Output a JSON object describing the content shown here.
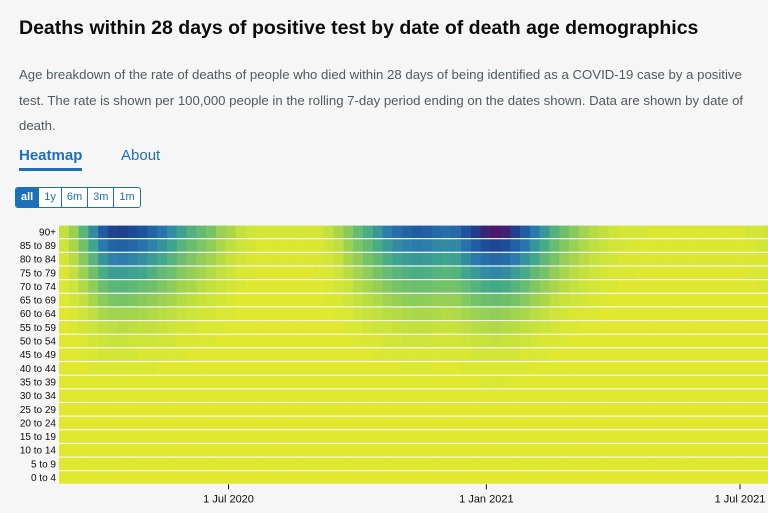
{
  "header": {
    "title": "Deaths within 28 days of positive test by date of death age demographics",
    "description": "Age breakdown of the rate of deaths of people who died within 28 days of being identified as a COVID-19 case by a positive test. The rate is shown per 100,000 people in the rolling 7-day period ending on the dates shown. Data are shown by date of death."
  },
  "tabs": [
    {
      "label": "Heatmap",
      "active": true
    },
    {
      "label": "About",
      "active": false
    }
  ],
  "time_ranges": [
    {
      "label": "all",
      "active": true
    },
    {
      "label": "1y",
      "active": false
    },
    {
      "label": "6m",
      "active": false
    },
    {
      "label": "3m",
      "active": false
    },
    {
      "label": "1m",
      "active": false
    }
  ],
  "chart_data": {
    "type": "heatmap",
    "age_groups": [
      "90+",
      "85 to 89",
      "80 to 84",
      "75 to 79",
      "70 to 74",
      "65 to 69",
      "60 to 64",
      "55 to 59",
      "50 to 54",
      "45 to 49",
      "40 to 44",
      "35 to 39",
      "30 to 34",
      "25 to 29",
      "20 to 24",
      "15 to 19",
      "10 to 14",
      "5 to 9",
      "0 to 4"
    ],
    "x_ticks": [
      {
        "label": "1 Jul 2020",
        "date": "2020-07-01"
      },
      {
        "label": "1 Jan 2021",
        "date": "2021-01-01"
      },
      {
        "label": "1 Jul 2021",
        "date": "2021-07-01"
      }
    ],
    "x_range": [
      "2020-03-02",
      "2021-07-21"
    ],
    "weeks": [
      "2020-03-02",
      "2020-03-09",
      "2020-03-16",
      "2020-03-23",
      "2020-03-30",
      "2020-04-06",
      "2020-04-13",
      "2020-04-20",
      "2020-04-27",
      "2020-05-04",
      "2020-05-11",
      "2020-05-18",
      "2020-05-25",
      "2020-06-01",
      "2020-06-08",
      "2020-06-15",
      "2020-06-22",
      "2020-06-29",
      "2020-07-06",
      "2020-07-13",
      "2020-07-20",
      "2020-07-27",
      "2020-08-03",
      "2020-08-10",
      "2020-08-17",
      "2020-08-24",
      "2020-08-31",
      "2020-09-07",
      "2020-09-14",
      "2020-09-21",
      "2020-09-28",
      "2020-10-05",
      "2020-10-12",
      "2020-10-19",
      "2020-10-26",
      "2020-11-02",
      "2020-11-09",
      "2020-11-16",
      "2020-11-23",
      "2020-11-30",
      "2020-12-07",
      "2020-12-14",
      "2020-12-21",
      "2020-12-28",
      "2021-01-04",
      "2021-01-11",
      "2021-01-18",
      "2021-01-25",
      "2021-02-01",
      "2021-02-08",
      "2021-02-15",
      "2021-02-22",
      "2021-03-01",
      "2021-03-08",
      "2021-03-15",
      "2021-03-22",
      "2021-03-29",
      "2021-04-05",
      "2021-04-12",
      "2021-04-19",
      "2021-04-26",
      "2021-05-03",
      "2021-05-10",
      "2021-05-17",
      "2021-05-24",
      "2021-05-31",
      "2021-06-07",
      "2021-06-14",
      "2021-06-21",
      "2021-06-28",
      "2021-07-05",
      "2021-07-12",
      "2021-07-19"
    ],
    "values": [
      [
        5,
        15,
        40,
        80,
        140,
        175,
        180,
        165,
        150,
        130,
        105,
        80,
        60,
        45,
        35,
        25,
        15,
        10,
        5,
        3,
        2,
        2,
        2,
        2,
        2,
        2,
        2,
        5,
        10,
        20,
        35,
        50,
        70,
        95,
        115,
        130,
        140,
        135,
        120,
        115,
        120,
        150,
        185,
        215,
        230,
        220,
        180,
        140,
        100,
        70,
        45,
        30,
        20,
        12,
        8,
        5,
        3,
        2,
        2,
        2,
        1,
        1,
        1,
        1,
        1,
        1,
        1,
        1,
        1,
        1,
        2,
        2,
        3
      ],
      [
        3,
        10,
        28,
        58,
        100,
        128,
        132,
        122,
        108,
        92,
        75,
        58,
        42,
        32,
        24,
        18,
        10,
        6,
        3,
        2,
        1,
        1,
        1,
        1,
        1,
        1,
        1,
        3,
        6,
        14,
        24,
        36,
        50,
        68,
        82,
        92,
        98,
        95,
        86,
        82,
        86,
        110,
        138,
        160,
        170,
        162,
        133,
        104,
        74,
        52,
        34,
        22,
        15,
        9,
        6,
        4,
        2,
        2,
        1,
        1,
        1,
        1,
        1,
        1,
        1,
        1,
        1,
        1,
        1,
        1,
        1,
        2,
        2
      ],
      [
        2,
        7,
        20,
        42,
        72,
        92,
        96,
        88,
        78,
        66,
        54,
        42,
        31,
        23,
        17,
        12,
        7,
        4,
        2,
        1,
        1,
        1,
        1,
        1,
        1,
        1,
        1,
        2,
        4,
        10,
        17,
        26,
        36,
        49,
        59,
        66,
        70,
        68,
        62,
        59,
        62,
        80,
        100,
        116,
        123,
        117,
        96,
        75,
        54,
        38,
        25,
        16,
        11,
        7,
        4,
        3,
        2,
        1,
        1,
        1,
        1,
        1,
        1,
        1,
        1,
        1,
        1,
        1,
        1,
        1,
        1,
        1,
        1
      ],
      [
        1,
        5,
        14,
        29,
        50,
        64,
        66,
        61,
        54,
        46,
        37,
        29,
        21,
        16,
        12,
        8,
        5,
        3,
        1,
        1,
        0,
        0,
        0,
        0,
        0,
        0,
        1,
        1,
        3,
        7,
        12,
        18,
        25,
        34,
        41,
        46,
        49,
        47,
        43,
        41,
        43,
        55,
        69,
        80,
        85,
        81,
        66,
        52,
        37,
        26,
        17,
        11,
        7,
        5,
        3,
        2,
        1,
        1,
        1,
        0,
        0,
        0,
        0,
        0,
        0,
        0,
        0,
        0,
        0,
        0,
        1,
        1,
        1
      ],
      [
        1,
        3,
        9,
        18,
        31,
        40,
        41,
        38,
        34,
        29,
        23,
        18,
        13,
        10,
        7,
        5,
        3,
        2,
        1,
        0,
        0,
        0,
        0,
        0,
        0,
        0,
        0,
        1,
        2,
        4,
        8,
        11,
        16,
        21,
        26,
        29,
        31,
        30,
        27,
        26,
        27,
        35,
        43,
        50,
        53,
        51,
        42,
        33,
        23,
        16,
        11,
        7,
        5,
        3,
        2,
        1,
        1,
        0,
        0,
        0,
        0,
        0,
        0,
        0,
        0,
        0,
        0,
        0,
        0,
        0,
        0,
        1,
        1
      ],
      [
        0,
        2,
        5,
        11,
        19,
        24,
        25,
        23,
        20,
        17,
        14,
        11,
        8,
        6,
        4,
        3,
        2,
        1,
        0,
        0,
        0,
        0,
        0,
        0,
        0,
        0,
        0,
        1,
        1,
        3,
        5,
        7,
        9,
        13,
        16,
        18,
        19,
        18,
        16,
        16,
        16,
        21,
        26,
        30,
        32,
        30,
        25,
        20,
        14,
        10,
        6,
        4,
        3,
        2,
        1,
        1,
        0,
        0,
        0,
        0,
        0,
        0,
        0,
        0,
        0,
        0,
        0,
        0,
        0,
        0,
        0,
        0,
        0
      ],
      [
        0,
        1,
        3,
        6,
        10,
        13,
        13,
        12,
        11,
        9,
        7,
        6,
        4,
        3,
        2,
        2,
        1,
        1,
        0,
        0,
        0,
        0,
        0,
        0,
        0,
        0,
        0,
        0,
        1,
        1,
        3,
        4,
        5,
        7,
        8,
        9,
        10,
        10,
        9,
        8,
        9,
        11,
        14,
        16,
        17,
        16,
        13,
        10,
        7,
        5,
        3,
        2,
        1,
        1,
        1,
        0,
        0,
        0,
        0,
        0,
        0,
        0,
        0,
        0,
        0,
        0,
        0,
        0,
        0,
        0,
        0,
        0,
        0
      ],
      [
        0,
        1,
        2,
        3,
        5,
        6,
        7,
        6,
        5,
        5,
        4,
        3,
        2,
        2,
        1,
        1,
        1,
        0,
        0,
        0,
        0,
        0,
        0,
        0,
        0,
        0,
        0,
        0,
        0,
        1,
        1,
        2,
        3,
        3,
        4,
        5,
        5,
        5,
        4,
        4,
        4,
        6,
        7,
        8,
        9,
        8,
        7,
        5,
        4,
        3,
        2,
        1,
        1,
        0,
        0,
        0,
        0,
        0,
        0,
        0,
        0,
        0,
        0,
        0,
        0,
        0,
        0,
        0,
        0,
        0,
        0,
        0,
        0
      ],
      [
        0,
        0,
        1,
        2,
        3,
        4,
        4,
        3,
        3,
        3,
        2,
        2,
        1,
        1,
        1,
        1,
        0,
        0,
        0,
        0,
        0,
        0,
        0,
        0,
        0,
        0,
        0,
        0,
        0,
        0,
        1,
        1,
        1,
        2,
        2,
        3,
        3,
        3,
        2,
        2,
        2,
        3,
        4,
        4,
        5,
        4,
        4,
        3,
        2,
        1,
        1,
        1,
        0,
        0,
        0,
        0,
        0,
        0,
        0,
        0,
        0,
        0,
        0,
        0,
        0,
        0,
        0,
        0,
        0,
        0,
        0,
        0,
        0
      ],
      [
        0,
        0,
        1,
        1,
        2,
        2,
        2,
        2,
        1,
        1,
        1,
        1,
        1,
        0,
        0,
        0,
        0,
        0,
        0,
        0,
        0,
        0,
        0,
        0,
        0,
        0,
        0,
        0,
        0,
        0,
        0,
        0,
        1,
        1,
        1,
        1,
        1,
        1,
        1,
        1,
        1,
        1,
        2,
        2,
        2,
        2,
        2,
        1,
        1,
        1,
        0,
        0,
        0,
        0,
        0,
        0,
        0,
        0,
        0,
        0,
        0,
        0,
        0,
        0,
        0,
        0,
        0,
        0,
        0,
        0,
        0,
        0,
        0
      ],
      [
        0,
        0,
        0,
        1,
        1,
        1,
        1,
        1,
        1,
        1,
        0,
        0,
        0,
        0,
        0,
        0,
        0,
        0,
        0,
        0,
        0,
        0,
        0,
        0,
        0,
        0,
        0,
        0,
        0,
        0,
        0,
        0,
        0,
        0,
        0,
        1,
        1,
        1,
        0,
        0,
        0,
        1,
        1,
        1,
        1,
        1,
        1,
        1,
        0,
        0,
        0,
        0,
        0,
        0,
        0,
        0,
        0,
        0,
        0,
        0,
        0,
        0,
        0,
        0,
        0,
        0,
        0,
        0,
        0,
        0,
        0,
        0,
        0
      ],
      [
        0,
        0,
        0,
        0,
        0,
        0,
        0,
        0,
        0,
        0,
        0,
        0,
        0,
        0,
        0,
        0,
        0,
        0,
        0,
        0,
        0,
        0,
        0,
        0,
        0,
        0,
        0,
        0,
        0,
        0,
        0,
        0,
        0,
        0,
        0,
        0,
        0,
        0,
        0,
        0,
        0,
        0,
        0,
        1,
        1,
        1,
        0,
        0,
        0,
        0,
        0,
        0,
        0,
        0,
        0,
        0,
        0,
        0,
        0,
        0,
        0,
        0,
        0,
        0,
        0,
        0,
        0,
        0,
        0,
        0,
        0,
        0,
        0
      ],
      [
        0,
        0,
        0,
        0,
        0,
        0,
        0,
        0,
        0,
        0,
        0,
        0,
        0,
        0,
        0,
        0,
        0,
        0,
        0,
        0,
        0,
        0,
        0,
        0,
        0,
        0,
        0,
        0,
        0,
        0,
        0,
        0,
        0,
        0,
        0,
        0,
        0,
        0,
        0,
        0,
        0,
        0,
        0,
        0,
        0,
        0,
        0,
        0,
        0,
        0,
        0,
        0,
        0,
        0,
        0,
        0,
        0,
        0,
        0,
        0,
        0,
        0,
        0,
        0,
        0,
        0,
        0,
        0,
        0,
        0,
        0,
        0,
        0
      ],
      [
        0,
        0,
        0,
        0,
        0,
        0,
        0,
        0,
        0,
        0,
        0,
        0,
        0,
        0,
        0,
        0,
        0,
        0,
        0,
        0,
        0,
        0,
        0,
        0,
        0,
        0,
        0,
        0,
        0,
        0,
        0,
        0,
        0,
        0,
        0,
        0,
        0,
        0,
        0,
        0,
        0,
        0,
        0,
        0,
        0,
        0,
        0,
        0,
        0,
        0,
        0,
        0,
        0,
        0,
        0,
        0,
        0,
        0,
        0,
        0,
        0,
        0,
        0,
        0,
        0,
        0,
        0,
        0,
        0,
        0,
        0,
        0,
        0
      ],
      [
        0,
        0,
        0,
        0,
        0,
        0,
        0,
        0,
        0,
        0,
        0,
        0,
        0,
        0,
        0,
        0,
        0,
        0,
        0,
        0,
        0,
        0,
        0,
        0,
        0,
        0,
        0,
        0,
        0,
        0,
        0,
        0,
        0,
        0,
        0,
        0,
        0,
        0,
        0,
        0,
        0,
        0,
        0,
        0,
        0,
        0,
        0,
        0,
        0,
        0,
        0,
        0,
        0,
        0,
        0,
        0,
        0,
        0,
        0,
        0,
        0,
        0,
        0,
        0,
        0,
        0,
        0,
        0,
        0,
        0,
        0,
        0,
        0
      ],
      [
        0,
        0,
        0,
        0,
        0,
        0,
        0,
        0,
        0,
        0,
        0,
        0,
        0,
        0,
        0,
        0,
        0,
        0,
        0,
        0,
        0,
        0,
        0,
        0,
        0,
        0,
        0,
        0,
        0,
        0,
        0,
        0,
        0,
        0,
        0,
        0,
        0,
        0,
        0,
        0,
        0,
        0,
        0,
        0,
        0,
        0,
        0,
        0,
        0,
        0,
        0,
        0,
        0,
        0,
        0,
        0,
        0,
        0,
        0,
        0,
        0,
        0,
        0,
        0,
        0,
        0,
        0,
        0,
        0,
        0,
        0,
        0,
        0
      ],
      [
        0,
        0,
        0,
        0,
        0,
        0,
        0,
        0,
        0,
        0,
        0,
        0,
        0,
        0,
        0,
        0,
        0,
        0,
        0,
        0,
        0,
        0,
        0,
        0,
        0,
        0,
        0,
        0,
        0,
        0,
        0,
        0,
        0,
        0,
        0,
        0,
        0,
        0,
        0,
        0,
        0,
        0,
        0,
        0,
        0,
        0,
        0,
        0,
        0,
        0,
        0,
        0,
        0,
        0,
        0,
        0,
        0,
        0,
        0,
        0,
        0,
        0,
        0,
        0,
        0,
        0,
        0,
        0,
        0,
        0,
        0,
        0,
        0
      ],
      [
        0,
        0,
        0,
        0,
        0,
        0,
        0,
        0,
        0,
        0,
        0,
        0,
        0,
        0,
        0,
        0,
        0,
        0,
        0,
        0,
        0,
        0,
        0,
        0,
        0,
        0,
        0,
        0,
        0,
        0,
        0,
        0,
        0,
        0,
        0,
        0,
        0,
        0,
        0,
        0,
        0,
        0,
        0,
        0,
        0,
        0,
        0,
        0,
        0,
        0,
        0,
        0,
        0,
        0,
        0,
        0,
        0,
        0,
        0,
        0,
        0,
        0,
        0,
        0,
        0,
        0,
        0,
        0,
        0,
        0,
        0,
        0,
        0
      ],
      [
        0,
        0,
        0,
        0,
        0,
        0,
        0,
        0,
        0,
        0,
        0,
        0,
        0,
        0,
        0,
        0,
        0,
        0,
        0,
        0,
        0,
        0,
        0,
        0,
        0,
        0,
        0,
        0,
        0,
        0,
        0,
        0,
        0,
        0,
        0,
        0,
        0,
        0,
        0,
        0,
        0,
        0,
        0,
        0,
        0,
        0,
        0,
        0,
        0,
        0,
        0,
        0,
        0,
        0,
        0,
        0,
        0,
        0,
        0,
        0,
        0,
        0,
        0,
        0,
        0,
        0,
        0,
        0,
        0,
        0,
        0,
        0,
        0
      ]
    ],
    "color_scale": [
      {
        "value": 0,
        "color": "#e0e830"
      },
      {
        "value": 3,
        "color": "#cde43a"
      },
      {
        "value": 10,
        "color": "#a9d74a"
      },
      {
        "value": 25,
        "color": "#77c466"
      },
      {
        "value": 55,
        "color": "#3fa88c"
      },
      {
        "value": 100,
        "color": "#2a78b0"
      },
      {
        "value": 160,
        "color": "#1c4d9c"
      },
      {
        "value": 200,
        "color": "#27307f"
      },
      {
        "value": 240,
        "color": "#5a0f66"
      }
    ]
  }
}
